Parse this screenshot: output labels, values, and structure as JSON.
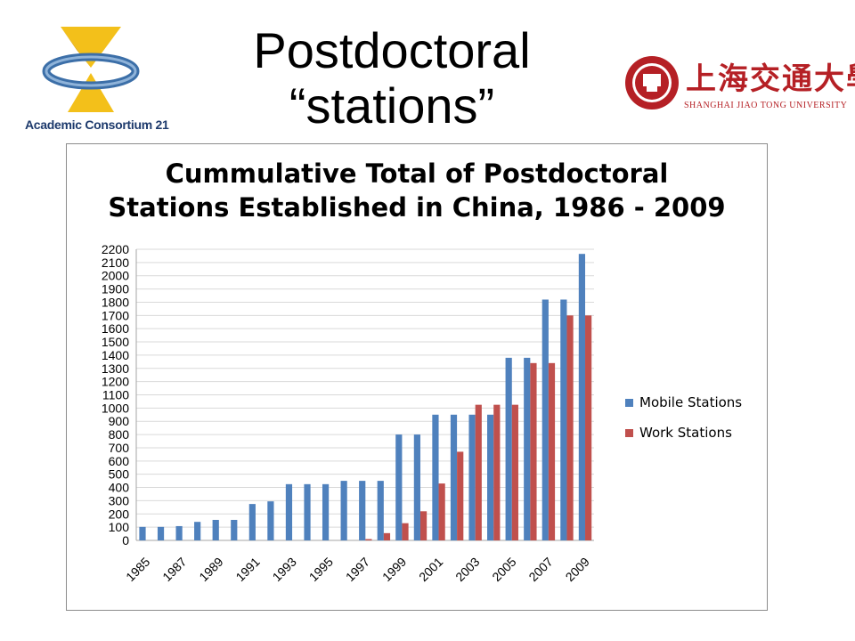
{
  "slide": {
    "title_line1": "Postdoctoral",
    "title_line2": "“stations”",
    "logo_left_text": "Academic Consortium 21",
    "logo_right_cn": "上海交通大學",
    "logo_right_en": "SHANGHAI JIAO TONG UNIVERSITY"
  },
  "colors": {
    "mobile": "#4f81bd",
    "work": "#c0504d",
    "grid": "#d9d9d9",
    "axis": "#a6a6a6"
  },
  "chart_data": {
    "type": "bar",
    "title_line1": "Cummulative Total of Postdoctoral",
    "title_line2": "Stations Established in China, 1986 - 2009",
    "categories": [
      "1985",
      "1986",
      "1987",
      "1988",
      "1989",
      "1990",
      "1991",
      "1992",
      "1993",
      "1994",
      "1995",
      "1996",
      "1997",
      "1998",
      "1999",
      "2000",
      "2001",
      "2002",
      "2003",
      "2004",
      "2005",
      "2006",
      "2007",
      "2008",
      "2009"
    ],
    "x_tick_labels": [
      "1985",
      "1987",
      "1989",
      "1991",
      "1993",
      "1995",
      "1997",
      "1999",
      "2001",
      "2003",
      "2005",
      "2007",
      "2009"
    ],
    "series": [
      {
        "name": "Mobile Stations",
        "values": [
          102,
          102,
          108,
          140,
          155,
          155,
          275,
          295,
          425,
          425,
          425,
          450,
          450,
          450,
          800,
          800,
          950,
          950,
          950,
          950,
          1380,
          1380,
          1820,
          1820,
          2165
        ]
      },
      {
        "name": "Work Stations",
        "values": [
          0,
          0,
          0,
          0,
          0,
          0,
          0,
          0,
          0,
          0,
          0,
          0,
          10,
          55,
          130,
          220,
          430,
          670,
          1025,
          1025,
          1025,
          1340,
          1340,
          1700,
          1700
        ]
      }
    ],
    "ylim": [
      0,
      2200
    ],
    "yticks": [
      0,
      100,
      200,
      300,
      400,
      500,
      600,
      700,
      800,
      900,
      1000,
      1100,
      1200,
      1300,
      1400,
      1500,
      1600,
      1700,
      1800,
      1900,
      2000,
      2100,
      2200
    ],
    "grid": true,
    "legend_position": "right"
  }
}
